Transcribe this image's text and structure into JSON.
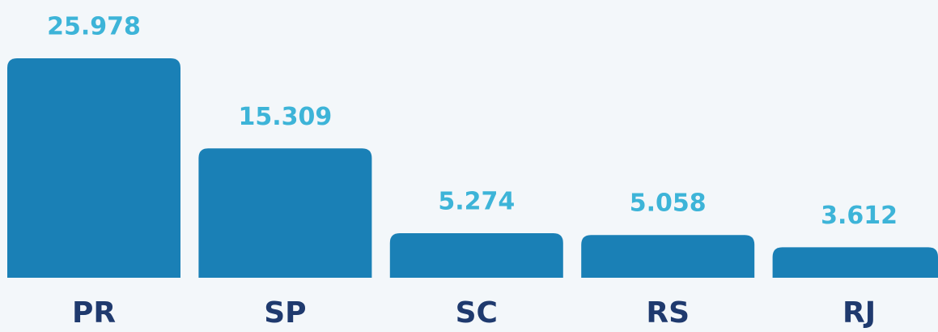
{
  "chart_data": {
    "type": "bar",
    "categories": [
      "PR",
      "SP",
      "SC",
      "RS",
      "RJ"
    ],
    "values": [
      25978,
      15309,
      5274,
      5058,
      3612
    ],
    "value_labels": [
      "25.978",
      "15.309",
      "5.274",
      "5.058",
      "3.612"
    ],
    "color": "#1a80b6"
  }
}
